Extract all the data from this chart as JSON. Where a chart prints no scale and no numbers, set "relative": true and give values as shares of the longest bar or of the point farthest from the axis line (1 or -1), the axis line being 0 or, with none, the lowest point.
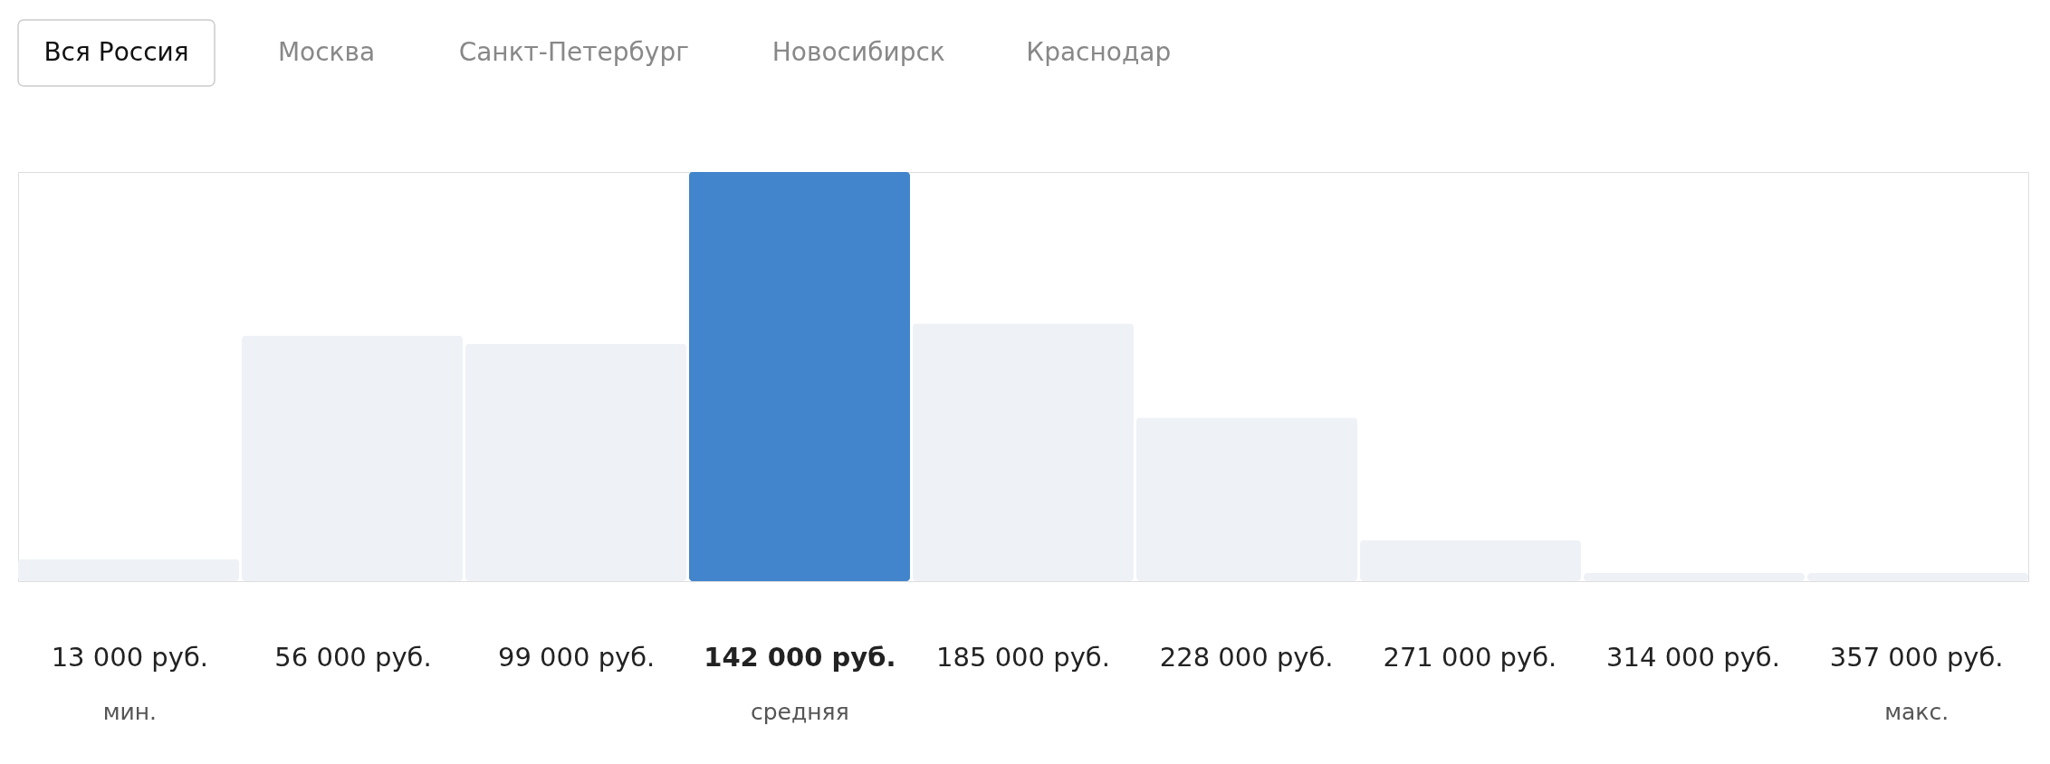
{
  "chart_data": {
    "type": "bar",
    "relative": true,
    "categories": [
      "13 000 руб.",
      "56 000 руб.",
      "99 000 руб.",
      "142 000 руб.",
      "185 000 руб.",
      "228 000 руб.",
      "271 000 руб.",
      "314 000 руб.",
      "357 000 руб."
    ],
    "values": [
      0.054,
      0.6,
      0.58,
      1,
      0.63,
      0.4,
      0.1,
      0.02,
      0.02
    ],
    "colors": [
      "#eef2f7",
      "#eef2f7",
      "#eef2f7",
      "#4285cc",
      "#eef2f7",
      "#eef2f7",
      "#eef2f7",
      "#eef2f7",
      "#eef2f7"
    ],
    "annotations": [
      "Вся Россия",
      "Москва",
      "Санкт-Петербург",
      "Новосибирск",
      "Краснодар",
      "мин.",
      "средняя",
      "макс."
    ]
  }
}
